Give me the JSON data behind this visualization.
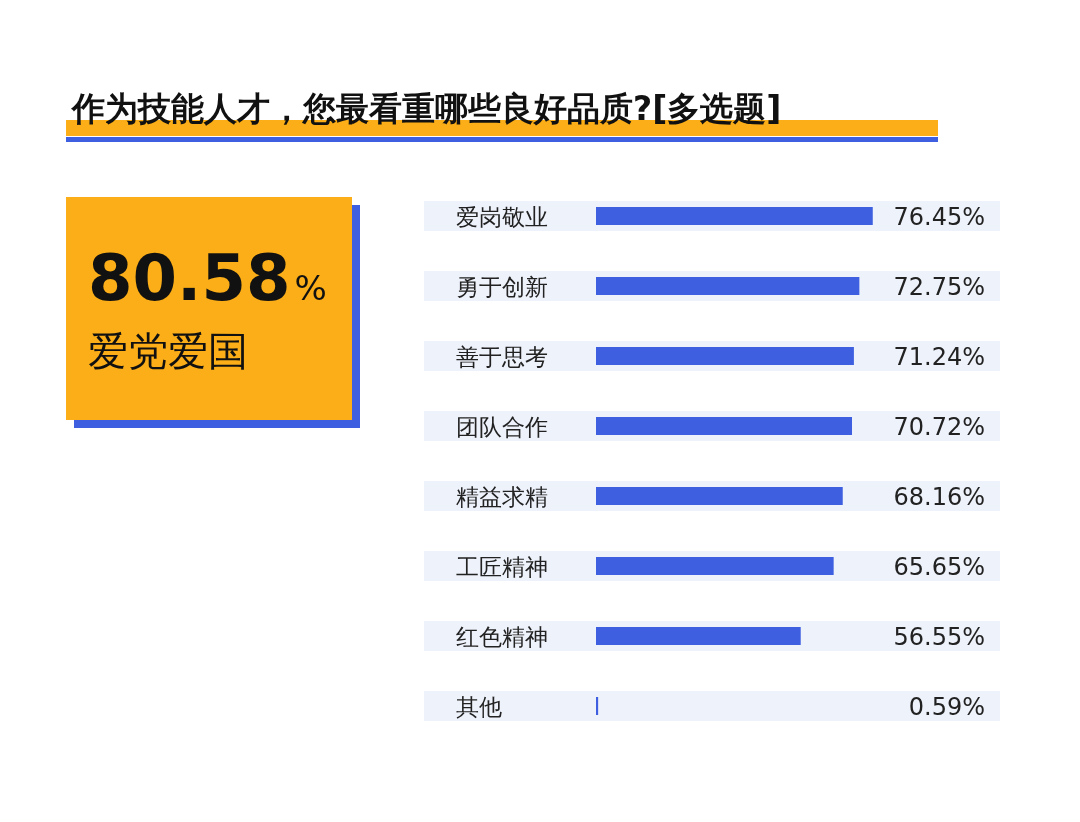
{
  "chart_data": [
    {
      "type": "other",
      "categories": [
        "爱党爱国"
      ],
      "value_labels": [
        "80.58%"
      ],
      "color": "#fbae17"
    },
    {
      "type": "bar",
      "orientation": "horizontal",
      "title": "作为技能人才，您最看重哪些良好品质?[多选题]",
      "categories": [
        "爱岗敬业",
        "勇于创新",
        "善于思考",
        "团队合作",
        "精益求精",
        "工匠精神",
        "红色精神",
        "其他"
      ],
      "values": [
        76.45,
        72.75,
        71.24,
        70.72,
        68.16,
        65.65,
        56.55,
        0.59
      ],
      "value_labels": [
        "76.45%",
        "72.75%",
        "71.24%",
        "70.72%",
        "68.16%",
        "65.65%",
        "56.55%",
        "0.59%"
      ],
      "color": "#3d5fe0"
    }
  ]
}
